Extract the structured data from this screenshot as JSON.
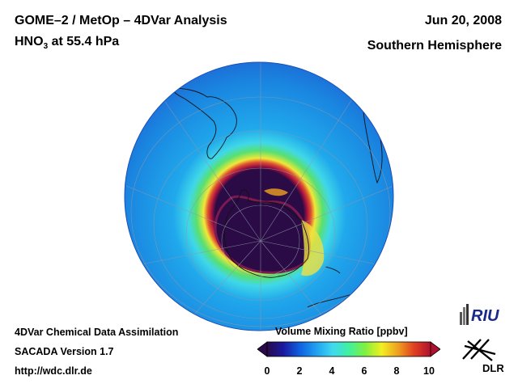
{
  "header": {
    "title": "GOME–2 / MetOp – 4DVar Analysis",
    "species_prefix": "HNO",
    "species_subscript": "3",
    "level": " at 55.4 hPa",
    "date": "Jun 20, 2008",
    "region": "Southern Hemisphere"
  },
  "footer": {
    "line1": "4DVar Chemical Data Assimilation",
    "line2": "SACADA Version 1.7",
    "line3": "http://wdc.dlr.de"
  },
  "colorbar": {
    "title": "Volume Mixing Ratio [ppbv]",
    "ticks": [
      "0",
      "2",
      "4",
      "6",
      "8",
      "10"
    ],
    "min": 0,
    "max": 10,
    "colors": [
      "#2a0a4a",
      "#1a1aa0",
      "#1060e0",
      "#20a0f0",
      "#40d8f0",
      "#40f0a0",
      "#80f040",
      "#f0f020",
      "#f0a020",
      "#e04020",
      "#b01030"
    ]
  },
  "map": {
    "projection": "orthographic, south pole centered",
    "field_colors": {
      "core": "#2a0b45",
      "inner_ring": "#9b1040",
      "ring_yellow": "#f0e838",
      "ring_green": "#58e070",
      "ring_cyan": "#40d8e8",
      "background": "#20a8ec",
      "outer": "#1a86e0",
      "edge": "#1d64d4"
    }
  },
  "logos": {
    "riu": "RIU",
    "dlr": "DLR"
  }
}
